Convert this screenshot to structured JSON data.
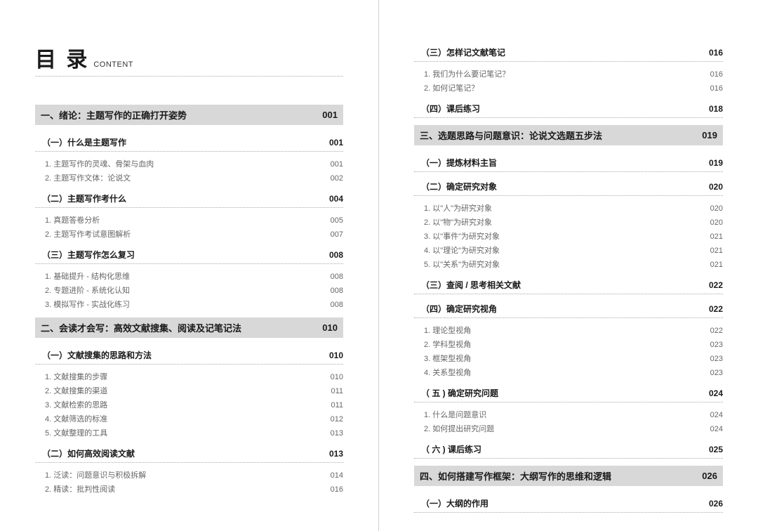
{
  "header": {
    "main": "目 录",
    "sub": "CONTENT"
  },
  "left": {
    "chapters": [
      {
        "title": "一、绪论：主题写作的正确打开姿势",
        "page": "001",
        "sections": [
          {
            "title": "（一）什么是主题写作",
            "page": "001",
            "subs": [
              {
                "title": "1. 主题写作的灵魂、骨架与血肉",
                "page": "001"
              },
              {
                "title": "2. 主题写作文体：论说文",
                "page": "002"
              }
            ]
          },
          {
            "title": "（二）主题写作考什么",
            "page": "004",
            "subs": [
              {
                "title": "1. 真题答卷分析",
                "page": "005"
              },
              {
                "title": "2. 主题写作考试意图解析",
                "page": "007"
              }
            ]
          },
          {
            "title": "（三）主题写作怎么复习",
            "page": "008",
            "subs": [
              {
                "title": "1. 基础提升 - 结构化思维",
                "page": "008"
              },
              {
                "title": "2. 专题进阶 - 系统化认知",
                "page": "008"
              },
              {
                "title": "3. 模拟写作 - 实战化练习",
                "page": "008"
              }
            ]
          }
        ]
      },
      {
        "title": "二、会读才会写：高效文献搜集、阅读及记笔记法",
        "page": "010",
        "sections": [
          {
            "title": "（一）文献搜集的思路和方法",
            "page": "010",
            "subs": [
              {
                "title": "1. 文献搜集的步骤",
                "page": "010"
              },
              {
                "title": "2. 文献搜集的渠道",
                "page": "011"
              },
              {
                "title": "3. 文献检索的思路",
                "page": "011"
              },
              {
                "title": "4. 文献筛选的标准",
                "page": "012"
              },
              {
                "title": "5. 文献整理的工具",
                "page": "013"
              }
            ]
          },
          {
            "title": "（二）如何高效阅读文献",
            "page": "013",
            "subs": [
              {
                "title": "1. 泛读：问题意识与积极拆解",
                "page": "014"
              },
              {
                "title": "2. 精读：批判性阅读",
                "page": "016"
              }
            ]
          }
        ]
      }
    ]
  },
  "right": {
    "top": {
      "sections": [
        {
          "title": "（三）怎样记文献笔记",
          "page": "016",
          "subs": [
            {
              "title": "1. 我们为什么要记笔记？",
              "page": "016"
            },
            {
              "title": "2. 如何记笔记？",
              "page": "016"
            }
          ]
        },
        {
          "title": "（四）课后练习",
          "page": "018",
          "subs": []
        }
      ]
    },
    "chapters": [
      {
        "title": "三、选题思路与问题意识：论说文选题五步法",
        "page": "019",
        "sections": [
          {
            "title": "（一）提炼材料主旨",
            "page": "019",
            "subs": []
          },
          {
            "title": "（二）确定研究对象",
            "page": "020",
            "subs": [
              {
                "title": "1. 以\"人\"为研究对象",
                "page": "020"
              },
              {
                "title": "2. 以\"物\"为研究对象",
                "page": "020"
              },
              {
                "title": "3. 以\"事件\"为研究对象",
                "page": "021"
              },
              {
                "title": "4. 以\"理论\"为研究对象",
                "page": "021"
              },
              {
                "title": "5. 以\"关系\"为研究对象",
                "page": "021"
              }
            ]
          },
          {
            "title": "（三）查阅 / 思考相关文献",
            "page": "022",
            "subs": []
          },
          {
            "title": "（四）确定研究视角",
            "page": "022",
            "subs": [
              {
                "title": "1. 理论型视角",
                "page": "022"
              },
              {
                "title": "2. 学科型视角",
                "page": "023"
              },
              {
                "title": "3. 框架型视角",
                "page": "023"
              },
              {
                "title": "4. 关系型视角",
                "page": "023"
              }
            ]
          },
          {
            "title": "（ 五 ) 确定研究问题",
            "page": "024",
            "subs": [
              {
                "title": "1. 什么是问题意识",
                "page": "024"
              },
              {
                "title": "2. 如何提出研究问题",
                "page": "024"
              }
            ]
          },
          {
            "title": "（ 六 ) 课后练习",
            "page": "025",
            "subs": []
          }
        ]
      },
      {
        "title": "四、如何搭建写作框架：大纲写作的思维和逻辑",
        "page": "026",
        "sections": [
          {
            "title": "（一）大纲的作用",
            "page": "026",
            "subs": []
          }
        ]
      }
    ]
  }
}
